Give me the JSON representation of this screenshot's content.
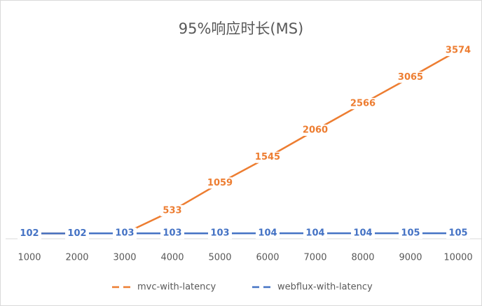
{
  "chart_data": {
    "type": "line",
    "title": "95%响应时长(MS)",
    "categories": [
      "1000",
      "2000",
      "3000",
      "4000",
      "5000",
      "6000",
      "7000",
      "8000",
      "9000",
      "10000"
    ],
    "series": [
      {
        "name": "mvc-with-latency",
        "color": "#ed7d31",
        "values": [
          102,
          102,
          103,
          533,
          1059,
          1545,
          2060,
          2566,
          3065,
          3574
        ]
      },
      {
        "name": "webflux-with-latency",
        "color": "#4472c4",
        "values": [
          102,
          102,
          103,
          103,
          103,
          104,
          104,
          104,
          105,
          105
        ]
      }
    ],
    "ylim": [
      0,
      4000
    ],
    "legend": "bottom",
    "data_labels": true
  }
}
